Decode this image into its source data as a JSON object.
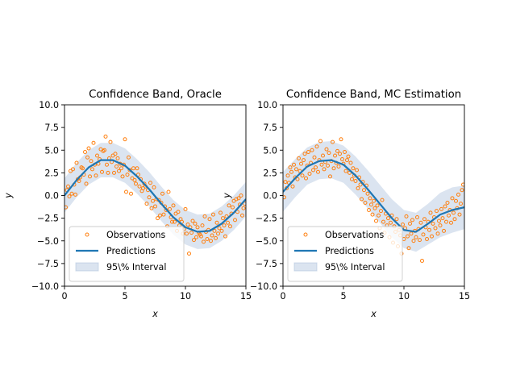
{
  "colors": {
    "observations": "#ff7f0e",
    "predictions": "#1f77b4",
    "band_fill": "#b0c4de"
  },
  "chart_data": [
    {
      "type": "scatter",
      "title": "Confidence Band, Oracle",
      "xlabel": "x",
      "ylabel": "y",
      "xlim": [
        0,
        15
      ],
      "ylim": [
        -10,
        10
      ],
      "x_ticks": [
        "0",
        "5",
        "10",
        "15"
      ],
      "y_ticks": [
        "10.0",
        "7.5",
        "5.0",
        "2.5",
        "0.0",
        "−2.5",
        "−5.0",
        "−7.5",
        "−10.0"
      ],
      "grid": false,
      "legend": {
        "placement": "lower-left",
        "entries": [
          "Observations",
          "Predictions",
          "95\\% Interval"
        ]
      },
      "series": [
        {
          "name": "Predictions",
          "kind": "line",
          "x": [
            0,
            1,
            2,
            3,
            4,
            5,
            6,
            7,
            8,
            9,
            10,
            11,
            12,
            13,
            14,
            15
          ],
          "y": [
            0.0,
            1.7,
            3.1,
            3.9,
            3.9,
            3.3,
            2.1,
            0.7,
            -0.9,
            -2.4,
            -3.5,
            -4.0,
            -3.9,
            -3.1,
            -1.9,
            -0.4
          ]
        },
        {
          "name": "95\\% Interval",
          "kind": "band",
          "x": [
            0,
            1,
            2,
            3,
            4,
            5,
            6,
            7,
            8,
            9,
            10,
            11,
            12,
            13,
            14,
            15
          ],
          "lower": [
            -1.9,
            -0.2,
            1.2,
            2.0,
            2.0,
            1.4,
            0.2,
            -1.2,
            -2.8,
            -4.3,
            -5.4,
            -5.9,
            -5.8,
            -5.0,
            -3.8,
            -2.3
          ],
          "upper": [
            1.9,
            3.6,
            5.0,
            5.8,
            5.8,
            5.2,
            4.0,
            2.6,
            1.0,
            -0.5,
            -1.6,
            -2.1,
            -2.0,
            -1.2,
            0.0,
            1.5
          ]
        },
        {
          "name": "Observations",
          "kind": "scatter",
          "x": [
            0.1,
            0.2,
            0.3,
            0.4,
            0.5,
            0.6,
            0.7,
            0.8,
            0.9,
            1.0,
            1.1,
            1.2,
            1.3,
            1.4,
            1.5,
            1.6,
            1.7,
            1.8,
            1.9,
            2.0,
            2.1,
            2.2,
            2.3,
            2.4,
            2.5,
            2.6,
            2.7,
            2.8,
            2.9,
            3.0,
            3.1,
            3.2,
            3.3,
            3.4,
            3.5,
            3.6,
            3.7,
            3.8,
            3.9,
            4.0,
            4.1,
            4.2,
            4.3,
            4.4,
            4.5,
            4.6,
            4.7,
            4.8,
            4.9,
            5.0,
            5.1,
            5.2,
            5.3,
            5.4,
            5.5,
            5.6,
            5.7,
            5.8,
            5.9,
            6.0,
            6.1,
            6.2,
            6.3,
            6.4,
            6.5,
            6.6,
            6.7,
            6.8,
            6.9,
            7.0,
            7.1,
            7.2,
            7.3,
            7.4,
            7.5,
            7.6,
            7.7,
            7.8,
            7.9,
            8.0,
            8.1,
            8.2,
            8.3,
            8.4,
            8.5,
            8.6,
            8.7,
            8.8,
            8.9,
            9.0,
            9.1,
            9.2,
            9.3,
            9.4,
            9.5,
            9.6,
            9.7,
            9.8,
            9.9,
            10.0,
            10.1,
            10.2,
            10.3,
            10.4,
            10.5,
            10.6,
            10.7,
            10.8,
            10.9,
            11.0,
            11.1,
            11.2,
            11.3,
            11.4,
            11.5,
            11.6,
            11.7,
            11.8,
            11.9,
            12.0,
            12.1,
            12.2,
            12.3,
            12.4,
            12.5,
            12.6,
            12.7,
            12.8,
            12.9,
            13.0,
            13.1,
            13.2,
            13.3,
            13.4,
            13.5,
            13.6,
            13.7,
            13.8,
            13.9,
            14.0,
            14.1,
            14.2,
            14.3,
            14.4,
            14.5,
            14.6,
            14.7,
            14.8,
            14.9
          ],
          "y": [
            -1.3,
            0.6,
            1.0,
            -0.1,
            2.7,
            0.2,
            2.9,
            1.2,
            0.1,
            3.6,
            1.8,
            1.6,
            2.0,
            3.1,
            3.0,
            2.3,
            4.8,
            1.3,
            4.2,
            5.2,
            2.1,
            3.8,
            2.9,
            5.8,
            3.4,
            2.2,
            4.4,
            3.5,
            4.0,
            5.1,
            2.6,
            4.9,
            5.0,
            6.5,
            3.4,
            2.5,
            4.1,
            5.9,
            3.7,
            4.4,
            2.5,
            4.6,
            3.2,
            4.1,
            2.7,
            3.5,
            3.0,
            2.1,
            3.4,
            6.2,
            0.4,
            2.3,
            4.2,
            2.8,
            0.2,
            1.9,
            3.0,
            1.7,
            1.3,
            3.0,
            2.3,
            1.0,
            1.8,
            0.5,
            0.8,
            1.3,
            1.0,
            -0.9,
            0.6,
            -0.2,
            1.4,
            -1.4,
            -0.6,
            0.9,
            -1.2,
            -0.4,
            -2.5,
            -0.5,
            -2.2,
            -0.8,
            0.2,
            -2.1,
            -1.2,
            -1.6,
            -3.4,
            0.4,
            -1.5,
            -2.4,
            -2.9,
            -1.1,
            -2.9,
            -2.0,
            -3.9,
            -1.8,
            -3.3,
            -2.6,
            -2.9,
            -4.2,
            -3.7,
            -1.5,
            -4.2,
            -3.2,
            -6.4,
            -3.5,
            -4.1,
            -2.8,
            -4.9,
            -3.1,
            -4.6,
            -3.5,
            -4.1,
            -4.3,
            -4.5,
            -3.3,
            -5.1,
            -2.3,
            -4.0,
            -4.8,
            -3.8,
            -2.6,
            -5.0,
            -4.4,
            -2.1,
            -3.9,
            -4.7,
            -3.0,
            -4.2,
            -3.6,
            -1.9,
            -3.9,
            -2.5,
            -3.3,
            -4.5,
            -2.3,
            -3.0,
            -1.1,
            -3.4,
            -2.0,
            -1.3,
            -0.6,
            -2.7,
            -0.4,
            -1.8,
            -0.3,
            -1.0,
            0.0,
            -2.2,
            -1.4,
            -0.9
          ]
        }
      ]
    },
    {
      "type": "scatter",
      "title": "Confidence Band, MC Estimation",
      "xlabel": "x",
      "ylabel": "y",
      "xlim": [
        0,
        15
      ],
      "ylim": [
        -10,
        10
      ],
      "x_ticks": [
        "0",
        "5",
        "10",
        "15"
      ],
      "y_ticks": [
        "10.0",
        "7.5",
        "5.0",
        "2.5",
        "0.0",
        "−2.5",
        "−5.0",
        "−7.5",
        "−10.0"
      ],
      "grid": false,
      "legend": {
        "placement": "lower-left",
        "entries": [
          "Observations",
          "Predictions",
          "95\\% Interval"
        ]
      },
      "series": [
        {
          "name": "Predictions",
          "kind": "line",
          "x": [
            0,
            1,
            2,
            3,
            4,
            5,
            6,
            7,
            8,
            9,
            10,
            11,
            12,
            13,
            14,
            15
          ],
          "y": [
            0.4,
            1.9,
            3.2,
            3.8,
            3.9,
            3.4,
            2.2,
            0.7,
            -0.9,
            -2.5,
            -3.8,
            -4.0,
            -3.1,
            -2.1,
            -1.6,
            -1.3
          ]
        },
        {
          "name": "95\\% Interval",
          "kind": "band",
          "x": [
            0,
            1,
            2,
            3,
            4,
            5,
            6,
            7,
            8,
            9,
            10,
            11,
            12,
            13,
            14,
            15
          ],
          "lower": [
            -1.8,
            -0.2,
            1.2,
            1.8,
            1.9,
            1.4,
            0.1,
            -1.4,
            -3.0,
            -4.6,
            -5.8,
            -6.2,
            -5.4,
            -4.6,
            -4.1,
            -3.7
          ],
          "upper": [
            2.6,
            4.0,
            5.3,
            5.9,
            6.0,
            5.5,
            4.3,
            2.8,
            1.2,
            -0.4,
            -1.6,
            -1.9,
            -0.9,
            0.3,
            0.9,
            1.1
          ]
        },
        {
          "name": "Observations",
          "kind": "scatter",
          "x": [
            0.1,
            0.2,
            0.3,
            0.4,
            0.5,
            0.6,
            0.7,
            0.8,
            0.9,
            1.0,
            1.1,
            1.2,
            1.3,
            1.4,
            1.5,
            1.6,
            1.7,
            1.8,
            1.9,
            2.0,
            2.1,
            2.2,
            2.3,
            2.4,
            2.5,
            2.6,
            2.7,
            2.8,
            2.9,
            3.0,
            3.1,
            3.2,
            3.3,
            3.4,
            3.5,
            3.6,
            3.7,
            3.8,
            3.9,
            4.0,
            4.1,
            4.2,
            4.3,
            4.4,
            4.5,
            4.6,
            4.7,
            4.8,
            4.9,
            5.0,
            5.1,
            5.2,
            5.3,
            5.4,
            5.5,
            5.6,
            5.7,
            5.8,
            5.9,
            6.0,
            6.1,
            6.2,
            6.3,
            6.4,
            6.5,
            6.6,
            6.7,
            6.8,
            6.9,
            7.0,
            7.1,
            7.2,
            7.3,
            7.4,
            7.5,
            7.6,
            7.7,
            7.8,
            7.9,
            8.0,
            8.1,
            8.2,
            8.3,
            8.4,
            8.5,
            8.6,
            8.7,
            8.8,
            8.9,
            9.0,
            9.1,
            9.2,
            9.3,
            9.4,
            9.5,
            9.6,
            9.7,
            9.8,
            9.9,
            10.0,
            10.1,
            10.2,
            10.3,
            10.4,
            10.5,
            10.6,
            10.7,
            10.8,
            10.9,
            11.0,
            11.1,
            11.2,
            11.3,
            11.4,
            11.5,
            11.6,
            11.7,
            11.8,
            11.9,
            12.0,
            12.1,
            12.2,
            12.3,
            12.4,
            12.5,
            12.6,
            12.7,
            12.8,
            12.9,
            13.0,
            13.1,
            13.2,
            13.3,
            13.4,
            13.5,
            13.6,
            13.7,
            13.8,
            13.9,
            14.0,
            14.1,
            14.2,
            14.3,
            14.4,
            14.5,
            14.6,
            14.7,
            14.8,
            14.9
          ],
          "y": [
            -0.2,
            1.5,
            0.8,
            2.2,
            1.4,
            3.1,
            2.6,
            1.0,
            3.4,
            2.0,
            2.9,
            1.8,
            4.1,
            2.7,
            3.5,
            2.2,
            3.9,
            4.6,
            1.9,
            3.3,
            4.8,
            2.4,
            3.6,
            5.0,
            2.8,
            4.2,
            3.1,
            5.4,
            2.6,
            3.9,
            6.0,
            3.4,
            4.4,
            2.9,
            3.7,
            5.1,
            3.3,
            4.7,
            2.1,
            3.8,
            5.9,
            3.0,
            4.4,
            3.6,
            4.9,
            3.2,
            4.6,
            6.2,
            4.0,
            3.5,
            4.8,
            2.7,
            3.9,
            4.3,
            2.5,
            3.6,
            1.8,
            3.0,
            2.2,
            1.6,
            2.8,
            0.8,
            2.0,
            1.2,
            -0.4,
            1.5,
            0.6,
            -0.8,
            1.1,
            0.2,
            -1.6,
            -0.3,
            -1.0,
            -2.1,
            -0.6,
            -1.4,
            -2.8,
            -1.1,
            -2.2,
            -3.6,
            -1.7,
            -0.5,
            -2.9,
            -4.1,
            -2.0,
            -3.3,
            -2.5,
            -4.6,
            -3.0,
            -2.2,
            -5.2,
            -3.4,
            -4.0,
            -2.6,
            -5.6,
            -3.8,
            -4.4,
            -6.4,
            -3.2,
            -4.8,
            -3.6,
            -2.3,
            -4.5,
            -5.8,
            -3.1,
            -4.2,
            -2.7,
            -5.0,
            -3.9,
            -4.6,
            -2.4,
            -3.7,
            -4.9,
            -3.0,
            -7.2,
            -4.3,
            -2.6,
            -3.5,
            -4.8,
            -2.9,
            -3.8,
            -1.9,
            -4.5,
            -3.1,
            -2.4,
            -3.6,
            -1.7,
            -4.2,
            -2.8,
            -3.3,
            -1.5,
            -2.5,
            -3.9,
            -1.2,
            -2.9,
            -0.8,
            -2.2,
            -1.6,
            -3.0,
            -0.3,
            -1.9,
            -2.6,
            -0.6,
            -1.4,
            0.1,
            -2.1,
            -0.9,
            0.6,
            1.2
          ]
        }
      ]
    }
  ]
}
